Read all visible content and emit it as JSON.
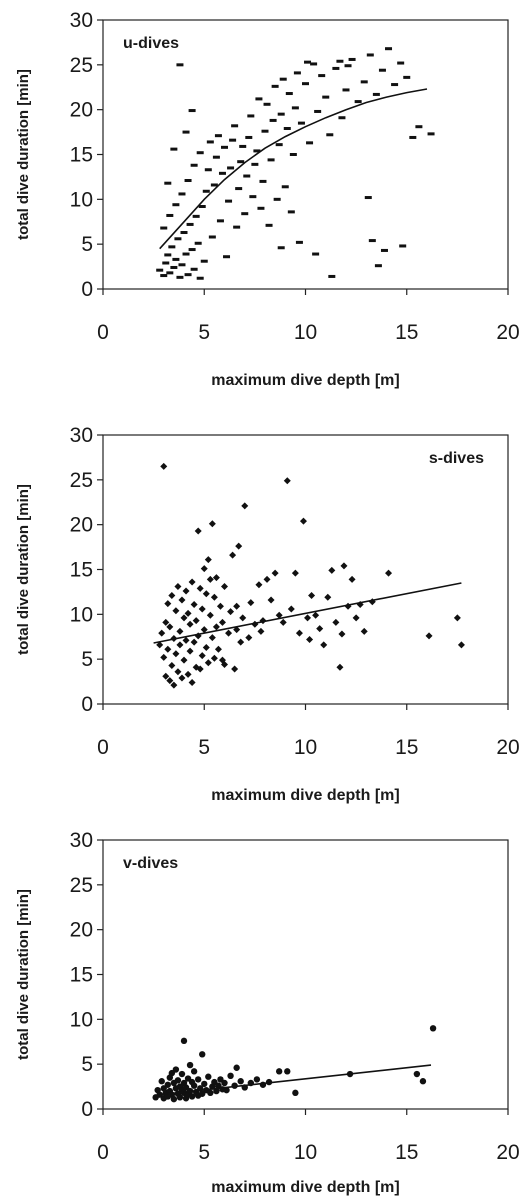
{
  "chart_data": [
    {
      "type": "scatter",
      "title": "u-dives",
      "title_position": "top-left",
      "marker": "dash",
      "xlabel": "maximum dive depth [m]",
      "ylabel": "total dive duration [min]",
      "xlim": [
        0,
        20
      ],
      "ylim": [
        0,
        30
      ],
      "xticks": [
        "0",
        "5",
        "10",
        "15",
        "20"
      ],
      "yticks": [
        "0",
        "5",
        "10",
        "15",
        "20",
        "25",
        "30"
      ],
      "grid": false,
      "trend": {
        "type": "curve",
        "x": [
          2.8,
          4,
          5,
          6,
          7,
          8,
          9,
          10,
          11,
          12,
          13,
          14,
          15,
          16
        ],
        "y": [
          4.5,
          7.5,
          10,
          12.2,
          14.1,
          15.7,
          17,
          18.1,
          19.1,
          20,
          20.8,
          21.4,
          21.9,
          22.3
        ]
      },
      "points": [
        [
          2.8,
          2.1
        ],
        [
          3.0,
          1.5
        ],
        [
          3.1,
          2.9
        ],
        [
          3.2,
          3.8
        ],
        [
          3.3,
          1.8
        ],
        [
          3.4,
          4.7
        ],
        [
          3.5,
          2.4
        ],
        [
          3.6,
          3.3
        ],
        [
          3.7,
          5.6
        ],
        [
          3.8,
          1.3
        ],
        [
          3.9,
          2.7
        ],
        [
          4.0,
          6.3
        ],
        [
          4.1,
          3.9
        ],
        [
          4.2,
          1.6
        ],
        [
          4.3,
          7.2
        ],
        [
          4.4,
          4.4
        ],
        [
          4.5,
          2.2
        ],
        [
          4.6,
          8.1
        ],
        [
          4.7,
          5.1
        ],
        [
          4.8,
          1.2
        ],
        [
          3.0,
          6.8
        ],
        [
          3.3,
          8.2
        ],
        [
          3.6,
          9.4
        ],
        [
          3.9,
          10.6
        ],
        [
          4.2,
          12.1
        ],
        [
          4.5,
          13.8
        ],
        [
          4.8,
          15.2
        ],
        [
          3.5,
          15.6
        ],
        [
          3.2,
          11.8
        ],
        [
          4.1,
          17.5
        ],
        [
          4.4,
          19.9
        ],
        [
          3.8,
          25.0
        ],
        [
          4.9,
          9.2
        ],
        [
          5.0,
          3.1
        ],
        [
          5.1,
          10.9
        ],
        [
          5.2,
          13.3
        ],
        [
          5.3,
          16.4
        ],
        [
          5.4,
          5.8
        ],
        [
          5.5,
          11.6
        ],
        [
          5.6,
          14.7
        ],
        [
          5.7,
          17.1
        ],
        [
          5.8,
          7.6
        ],
        [
          5.9,
          12.9
        ],
        [
          6.0,
          15.8
        ],
        [
          6.1,
          3.6
        ],
        [
          6.2,
          9.8
        ],
        [
          6.3,
          13.5
        ],
        [
          6.4,
          16.6
        ],
        [
          6.5,
          18.2
        ],
        [
          6.6,
          6.9
        ],
        [
          6.7,
          11.2
        ],
        [
          6.8,
          14.2
        ],
        [
          6.9,
          15.9
        ],
        [
          7.0,
          8.4
        ],
        [
          7.1,
          12.6
        ],
        [
          7.2,
          16.9
        ],
        [
          7.3,
          19.3
        ],
        [
          7.4,
          10.3
        ],
        [
          7.5,
          13.9
        ],
        [
          7.6,
          15.4
        ],
        [
          7.7,
          21.2
        ],
        [
          7.8,
          9.0
        ],
        [
          7.9,
          12.0
        ],
        [
          8.0,
          17.6
        ],
        [
          8.1,
          20.6
        ],
        [
          8.2,
          7.1
        ],
        [
          8.3,
          14.4
        ],
        [
          8.4,
          18.8
        ],
        [
          8.5,
          22.6
        ],
        [
          8.6,
          10.0
        ],
        [
          8.7,
          16.1
        ],
        [
          8.8,
          19.5
        ],
        [
          8.9,
          23.4
        ],
        [
          9.0,
          11.4
        ],
        [
          9.1,
          17.9
        ],
        [
          9.2,
          21.8
        ],
        [
          9.3,
          8.6
        ],
        [
          9.4,
          15.0
        ],
        [
          9.5,
          20.2
        ],
        [
          9.6,
          24.1
        ],
        [
          9.8,
          18.5
        ],
        [
          10.0,
          22.9
        ],
        [
          10.2,
          16.3
        ],
        [
          10.4,
          25.1
        ],
        [
          10.6,
          19.8
        ],
        [
          10.8,
          23.8
        ],
        [
          11.0,
          21.4
        ],
        [
          11.2,
          17.2
        ],
        [
          11.5,
          24.6
        ],
        [
          11.8,
          19.1
        ],
        [
          12.0,
          22.2
        ],
        [
          12.3,
          25.6
        ],
        [
          12.6,
          20.9
        ],
        [
          12.9,
          23.1
        ],
        [
          13.2,
          26.1
        ],
        [
          13.5,
          21.7
        ],
        [
          13.8,
          24.4
        ],
        [
          14.1,
          26.8
        ],
        [
          14.4,
          22.8
        ],
        [
          14.7,
          25.2
        ],
        [
          15.0,
          23.6
        ],
        [
          15.3,
          16.9
        ],
        [
          15.6,
          18.1
        ],
        [
          16.2,
          17.3
        ],
        [
          13.1,
          10.2
        ],
        [
          13.3,
          5.4
        ],
        [
          13.9,
          4.3
        ],
        [
          14.8,
          4.8
        ],
        [
          13.6,
          2.6
        ],
        [
          11.3,
          1.4
        ],
        [
          9.7,
          5.2
        ],
        [
          8.8,
          4.6
        ],
        [
          10.5,
          3.9
        ],
        [
          10.1,
          25.3
        ],
        [
          12.1,
          24.9
        ],
        [
          11.7,
          25.4
        ]
      ]
    },
    {
      "type": "scatter",
      "title": "s-dives",
      "title_position": "top-right",
      "marker": "diamond",
      "xlabel": "maximum dive depth [m]",
      "ylabel": "total dive duration [min]",
      "xlim": [
        0,
        20
      ],
      "ylim": [
        0,
        30
      ],
      "xticks": [
        "0",
        "5",
        "10",
        "15",
        "20"
      ],
      "yticks": [
        "0",
        "5",
        "10",
        "15",
        "20",
        "25",
        "30"
      ],
      "grid": false,
      "trend": {
        "type": "line",
        "x": [
          2.5,
          17.7
        ],
        "y": [
          6.8,
          13.5
        ]
      },
      "points": [
        [
          3.0,
          26.5
        ],
        [
          2.8,
          6.6
        ],
        [
          2.9,
          7.9
        ],
        [
          3.0,
          5.2
        ],
        [
          3.1,
          9.1
        ],
        [
          3.1,
          3.1
        ],
        [
          3.2,
          11.2
        ],
        [
          3.2,
          6.1
        ],
        [
          3.3,
          2.6
        ],
        [
          3.3,
          8.6
        ],
        [
          3.4,
          12.1
        ],
        [
          3.4,
          4.3
        ],
        [
          3.5,
          7.3
        ],
        [
          3.5,
          2.1
        ],
        [
          3.6,
          10.4
        ],
        [
          3.6,
          5.6
        ],
        [
          3.7,
          13.1
        ],
        [
          3.7,
          3.6
        ],
        [
          3.8,
          8.1
        ],
        [
          3.8,
          6.6
        ],
        [
          3.9,
          11.6
        ],
        [
          3.9,
          2.9
        ],
        [
          4.0,
          9.6
        ],
        [
          4.0,
          4.9
        ],
        [
          4.1,
          12.6
        ],
        [
          4.1,
          7.1
        ],
        [
          4.2,
          3.3
        ],
        [
          4.2,
          10.1
        ],
        [
          4.3,
          5.9
        ],
        [
          4.3,
          8.9
        ],
        [
          4.4,
          13.6
        ],
        [
          4.4,
          2.4
        ],
        [
          4.5,
          6.9
        ],
        [
          4.5,
          11.1
        ],
        [
          4.6,
          4.1
        ],
        [
          4.6,
          9.3
        ],
        [
          4.7,
          19.3
        ],
        [
          4.7,
          7.6
        ],
        [
          4.8,
          12.9
        ],
        [
          4.8,
          3.9
        ],
        [
          4.9,
          5.4
        ],
        [
          4.9,
          10.6
        ],
        [
          5.0,
          15.1
        ],
        [
          5.0,
          8.3
        ],
        [
          5.1,
          6.3
        ],
        [
          5.1,
          12.3
        ],
        [
          5.2,
          16.1
        ],
        [
          5.2,
          4.6
        ],
        [
          5.3,
          13.9
        ],
        [
          5.3,
          9.9
        ],
        [
          5.4,
          20.1
        ],
        [
          5.4,
          7.4
        ],
        [
          5.5,
          11.9
        ],
        [
          5.5,
          5.1
        ],
        [
          5.6,
          14.1
        ],
        [
          5.6,
          8.6
        ],
        [
          5.7,
          6.1
        ],
        [
          5.8,
          10.9
        ],
        [
          5.9,
          9.1
        ],
        [
          6.0,
          13.1
        ],
        [
          6.0,
          4.4
        ],
        [
          6.2,
          7.9
        ],
        [
          6.3,
          10.3
        ],
        [
          6.4,
          16.6
        ],
        [
          6.5,
          3.9
        ],
        [
          6.6,
          8.3
        ],
        [
          6.7,
          17.6
        ],
        [
          6.8,
          6.9
        ],
        [
          6.9,
          9.6
        ],
        [
          7.0,
          22.1
        ],
        [
          7.2,
          7.4
        ],
        [
          7.3,
          11.3
        ],
        [
          7.5,
          8.9
        ],
        [
          7.7,
          13.3
        ],
        [
          7.9,
          9.3
        ],
        [
          8.1,
          13.9
        ],
        [
          8.3,
          11.6
        ],
        [
          8.5,
          14.6
        ],
        [
          8.7,
          9.9
        ],
        [
          8.9,
          9.1
        ],
        [
          9.1,
          24.9
        ],
        [
          9.3,
          10.6
        ],
        [
          9.5,
          14.6
        ],
        [
          9.7,
          7.9
        ],
        [
          9.9,
          20.4
        ],
        [
          10.1,
          9.6
        ],
        [
          10.3,
          12.1
        ],
        [
          10.5,
          9.9
        ],
        [
          10.7,
          8.4
        ],
        [
          10.9,
          6.6
        ],
        [
          11.1,
          11.9
        ],
        [
          11.3,
          14.9
        ],
        [
          11.5,
          9.1
        ],
        [
          11.7,
          4.1
        ],
        [
          11.9,
          15.4
        ],
        [
          12.1,
          10.9
        ],
        [
          12.3,
          13.9
        ],
        [
          12.5,
          9.6
        ],
        [
          12.7,
          11.1
        ],
        [
          12.9,
          8.1
        ],
        [
          13.3,
          11.4
        ],
        [
          14.1,
          14.6
        ],
        [
          16.1,
          7.6
        ],
        [
          17.5,
          9.6
        ],
        [
          17.7,
          6.6
        ],
        [
          5.9,
          4.9
        ],
        [
          6.6,
          10.9
        ],
        [
          7.8,
          8.1
        ],
        [
          10.2,
          7.2
        ],
        [
          11.8,
          7.8
        ]
      ]
    },
    {
      "type": "scatter",
      "title": "v-dives",
      "title_position": "top-left",
      "marker": "dot",
      "xlabel": "maximum dive depth [m]",
      "ylabel": "total dive duration [min]",
      "xlim": [
        0,
        20
      ],
      "ylim": [
        0,
        30
      ],
      "xticks": [
        "0",
        "5",
        "10",
        "15",
        "20"
      ],
      "yticks": [
        "0",
        "5",
        "10",
        "15",
        "20",
        "25",
        "30"
      ],
      "grid": false,
      "trend": {
        "type": "line",
        "x": [
          2.8,
          16.2
        ],
        "y": [
          1.6,
          4.9
        ]
      },
      "points": [
        [
          2.6,
          1.3
        ],
        [
          2.7,
          2.1
        ],
        [
          2.8,
          1.6
        ],
        [
          2.9,
          3.1
        ],
        [
          3.0,
          2.3
        ],
        [
          3.0,
          1.2
        ],
        [
          3.1,
          1.8
        ],
        [
          3.2,
          2.7
        ],
        [
          3.2,
          1.4
        ],
        [
          3.3,
          3.5
        ],
        [
          3.3,
          2.0
        ],
        [
          3.4,
          1.6
        ],
        [
          3.5,
          2.9
        ],
        [
          3.5,
          1.1
        ],
        [
          3.6,
          2.3
        ],
        [
          3.6,
          4.4
        ],
        [
          3.7,
          1.7
        ],
        [
          3.7,
          3.2
        ],
        [
          3.8,
          2.5
        ],
        [
          3.8,
          1.3
        ],
        [
          3.9,
          3.9
        ],
        [
          3.9,
          2.1
        ],
        [
          4.0,
          7.6
        ],
        [
          4.0,
          1.8
        ],
        [
          4.0,
          2.9
        ],
        [
          4.1,
          1.2
        ],
        [
          4.1,
          2.4
        ],
        [
          4.2,
          3.4
        ],
        [
          4.2,
          1.6
        ],
        [
          4.3,
          2.0
        ],
        [
          4.4,
          3.0
        ],
        [
          4.4,
          1.4
        ],
        [
          4.5,
          2.6
        ],
        [
          4.5,
          4.2
        ],
        [
          4.6,
          1.9
        ],
        [
          4.7,
          3.3
        ],
        [
          4.7,
          1.5
        ],
        [
          4.8,
          2.3
        ],
        [
          4.9,
          6.1
        ],
        [
          4.9,
          1.7
        ],
        [
          5.0,
          2.8
        ],
        [
          5.1,
          2.1
        ],
        [
          5.2,
          3.6
        ],
        [
          5.3,
          1.8
        ],
        [
          5.4,
          2.5
        ],
        [
          5.5,
          3.0
        ],
        [
          5.6,
          2.0
        ],
        [
          5.7,
          2.6
        ],
        [
          5.8,
          3.3
        ],
        [
          5.9,
          2.2
        ],
        [
          6.0,
          2.9
        ],
        [
          6.1,
          2.1
        ],
        [
          6.3,
          3.7
        ],
        [
          6.5,
          2.6
        ],
        [
          6.6,
          4.6
        ],
        [
          6.8,
          3.1
        ],
        [
          7.0,
          2.4
        ],
        [
          7.3,
          2.9
        ],
        [
          7.6,
          3.3
        ],
        [
          7.9,
          2.7
        ],
        [
          8.2,
          3.0
        ],
        [
          8.7,
          4.2
        ],
        [
          9.1,
          4.2
        ],
        [
          9.5,
          1.8
        ],
        [
          12.2,
          3.9
        ],
        [
          15.5,
          3.9
        ],
        [
          15.8,
          3.1
        ],
        [
          16.3,
          9.0
        ],
        [
          3.4,
          4.0
        ],
        [
          4.3,
          4.9
        ]
      ]
    }
  ]
}
